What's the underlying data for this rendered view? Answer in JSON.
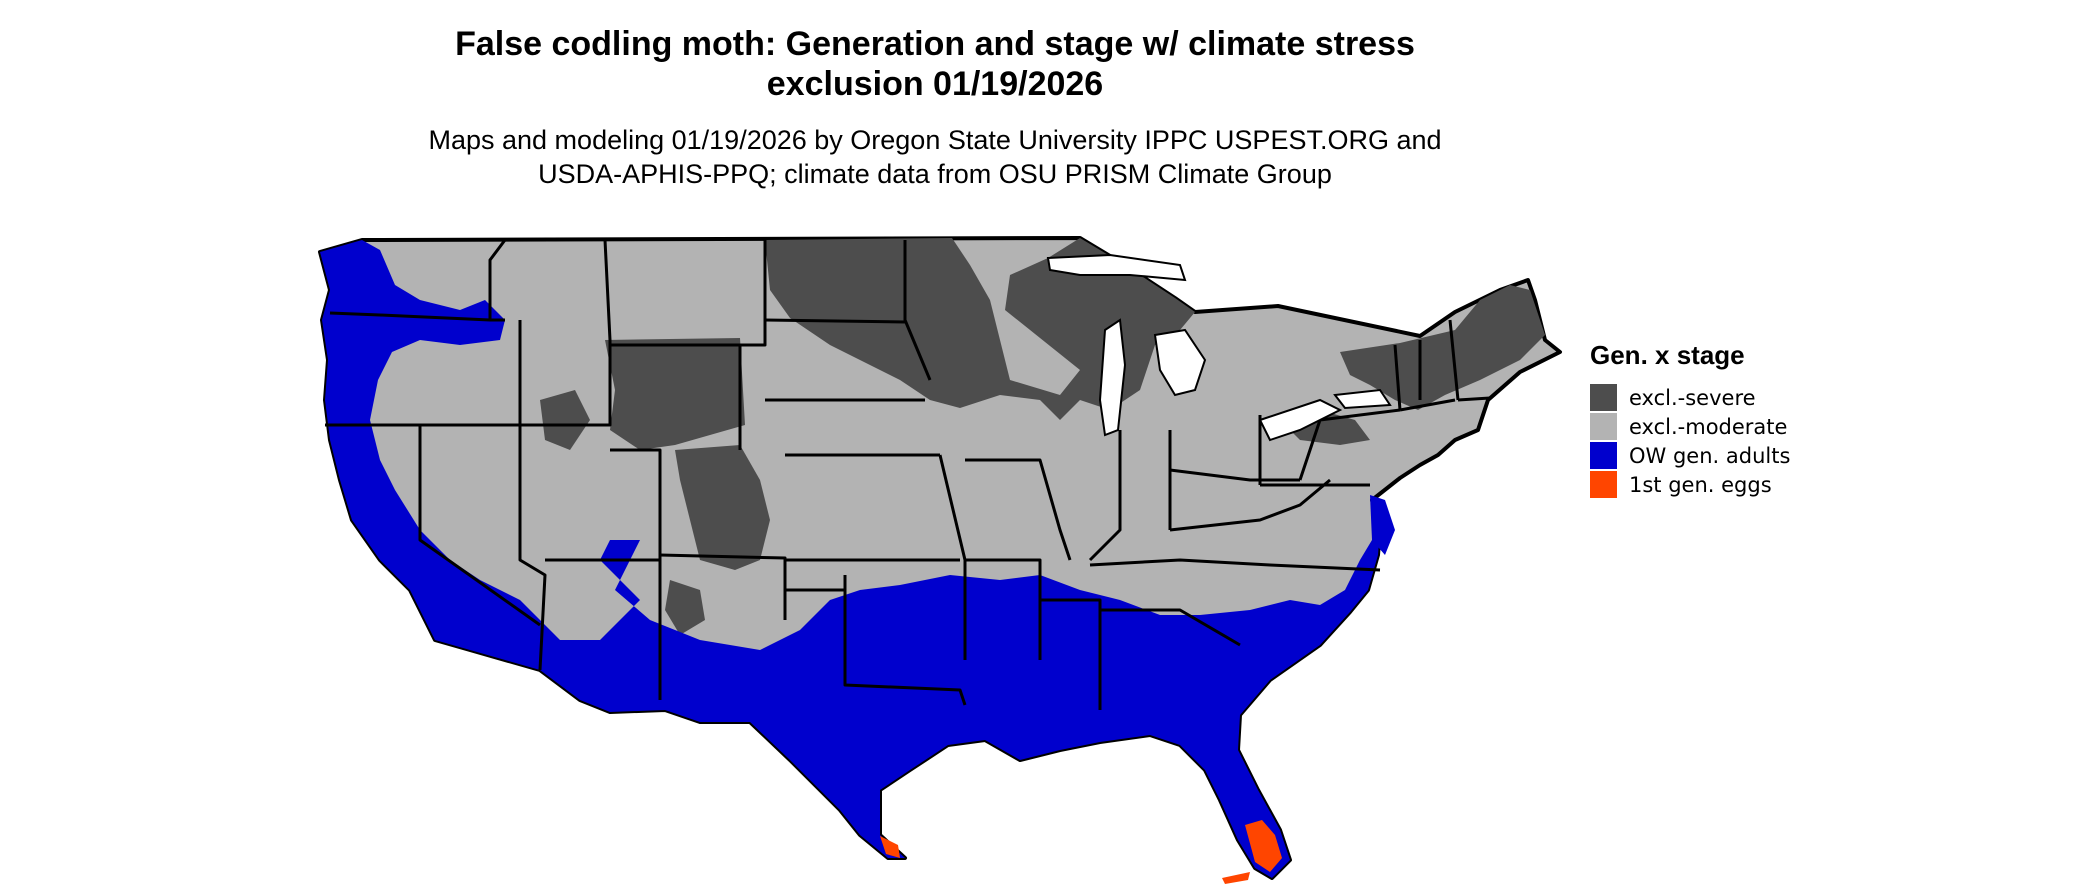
{
  "title_lines": [
    "False codling moth: Generation and stage w/ climate stress",
    "exclusion 01/19/2026"
  ],
  "subtitle_lines": [
    "Maps and modeling 01/19/2026 by Oregon State University IPPC USPEST.ORG and",
    "USDA-APHIS-PPQ; climate data from OSU PRISM Climate Group"
  ],
  "legend": {
    "title": "Gen. x stage",
    "items": [
      {
        "label": "excl.-severe",
        "color": "#4d4d4d"
      },
      {
        "label": "excl.-moderate",
        "color": "#b3b3b3"
      },
      {
        "label": "OW gen. adults",
        "color": "#0000cd"
      },
      {
        "label": "1st gen. eggs",
        "color": "#ff4500"
      }
    ]
  }
}
